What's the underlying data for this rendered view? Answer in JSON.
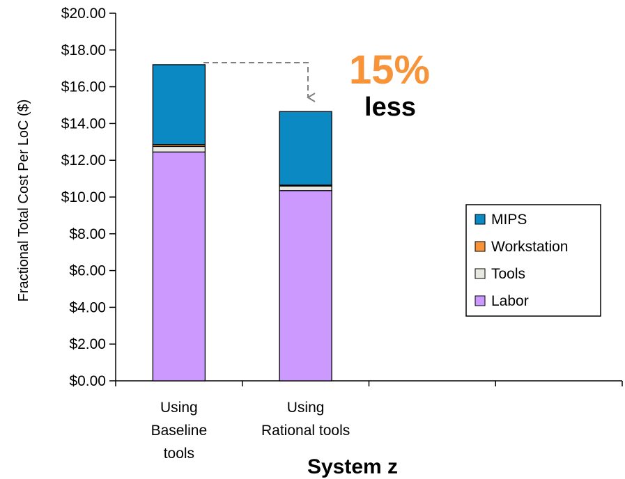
{
  "chart_data": {
    "type": "bar",
    "stacked": true,
    "categories": [
      [
        "Using",
        "Baseline",
        "tools"
      ],
      [
        "Using",
        "Rational tools"
      ],
      [
        ""
      ],
      [
        ""
      ]
    ],
    "series": [
      {
        "name": "Labor",
        "color": "#cc99ff",
        "values": [
          12.45,
          10.35,
          null,
          null
        ]
      },
      {
        "name": "Tools",
        "color": "#e8e8e0",
        "values": [
          0.3,
          0.25,
          null,
          null
        ]
      },
      {
        "name": "Workstation",
        "color": "#f7943a",
        "values": [
          0.1,
          0.05,
          null,
          null
        ]
      },
      {
        "name": "MIPS",
        "color": "#0a89c2",
        "values": [
          4.35,
          4.0,
          null,
          null
        ]
      }
    ],
    "ylim": [
      0,
      20
    ],
    "yticks": [
      "$0.00",
      "$2.00",
      "$4.00",
      "$6.00",
      "$8.00",
      "$10.00",
      "$12.00",
      "$14.00",
      "$16.00",
      "$18.00",
      "$20.00"
    ],
    "ylabel": "Fractional Total Cost Per LoC ($)",
    "xlabel": "System z",
    "legend_position": "right",
    "legend_order": [
      "MIPS",
      "Workstation",
      "Tools",
      "Labor"
    ],
    "annotation": {
      "value": "15%",
      "text": "less",
      "value_color": "#f7943a"
    },
    "grid": false
  }
}
